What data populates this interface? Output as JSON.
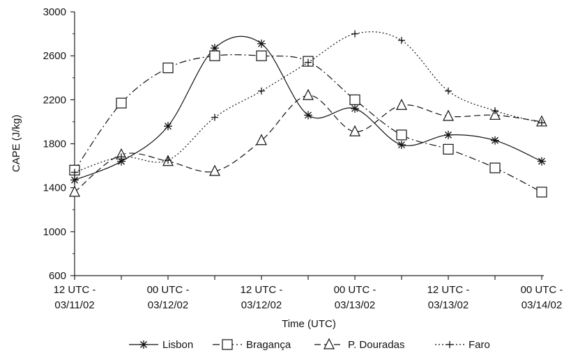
{
  "chart_data": {
    "type": "line",
    "xlabel": "Time (UTC)",
    "ylabel": "CAPE (J/kg)",
    "ylim": [
      600,
      3000
    ],
    "yticks": [
      600,
      1000,
      1400,
      1800,
      2200,
      2600,
      3000
    ],
    "x_ticks": [
      {
        "x": 0,
        "line1": "12 UTC -",
        "line2": "03/11/02"
      },
      {
        "x": 2,
        "line1": "00 UTC -",
        "line2": "03/12/02"
      },
      {
        "x": 4,
        "line1": "12 UTC -",
        "line2": "03/12/02"
      },
      {
        "x": 6,
        "line1": "00 UTC -",
        "line2": "03/13/02"
      },
      {
        "x": 8,
        "line1": "12 UTC -",
        "line2": "03/13/02"
      },
      {
        "x": 10,
        "line1": "00 UTC -",
        "line2": "03/14/02"
      }
    ],
    "x": [
      0,
      1,
      2,
      3,
      4,
      5,
      6,
      7,
      8,
      9,
      10
    ],
    "legend_position": "bottom",
    "grid": false,
    "series": [
      {
        "name": "Lisbon",
        "marker": "asterisk",
        "dash": "solid",
        "values": [
          1470,
          1640,
          1960,
          2670,
          2710,
          2060,
          2120,
          1790,
          1880,
          1830,
          1640
        ]
      },
      {
        "name": "Bragança",
        "marker": "square",
        "dash": "dashdot",
        "values": [
          1560,
          2170,
          2490,
          2600,
          2600,
          2550,
          2200,
          1880,
          1750,
          1580,
          1360
        ]
      },
      {
        "name": "P. Douradas",
        "marker": "triangle",
        "dash": "dashed",
        "values": [
          1360,
          1700,
          1640,
          1550,
          1830,
          2240,
          1910,
          2150,
          2050,
          2060,
          2000
        ]
      },
      {
        "name": "Faro",
        "marker": "plus",
        "dash": "dotted",
        "values": [
          1540,
          1680,
          1650,
          2040,
          2280,
          2540,
          2800,
          2740,
          2280,
          2100,
          1990
        ]
      }
    ]
  }
}
